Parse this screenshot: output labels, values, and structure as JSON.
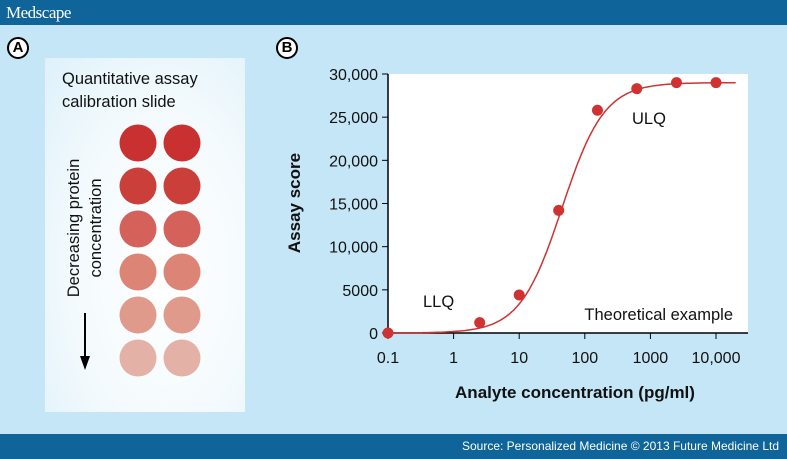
{
  "header": {
    "brand": "Medscape"
  },
  "footer": {
    "source": "Source: Personalized Medicine © 2013 Future Medicine Ltd"
  },
  "panel_a": {
    "badge": "A",
    "title_line1": "Quantitative assay",
    "title_line2": "calibration slide",
    "axis_label_line1": "Decreasing protein",
    "axis_label_line2": "concentration",
    "dot_colors": [
      "#c93030",
      "#cb3f3a",
      "#d4625a",
      "#dc8475",
      "#e09a8c",
      "#e4b1a6"
    ]
  },
  "panel_b": {
    "badge": "B"
  },
  "chart_data": {
    "type": "scatter",
    "xlabel": "Analyte concentration (pg/ml)",
    "ylabel": "Assay score",
    "xscale": "log",
    "xlim": [
      0.1,
      20000
    ],
    "ylim": [
      0,
      30000
    ],
    "xticks": [
      0.1,
      1,
      10,
      100,
      1000,
      10000
    ],
    "xtick_labels": [
      "0.1",
      "1",
      "10",
      "100",
      "1000",
      "10,000"
    ],
    "yticks": [
      0,
      5000,
      10000,
      15000,
      20000,
      25000,
      30000
    ],
    "ytick_labels": [
      "0",
      "5000",
      "10,000",
      "15,000",
      "20,000",
      "25,000",
      "30,000"
    ],
    "points": [
      {
        "x": 0.1,
        "y": 0
      },
      {
        "x": 2.5,
        "y": 1200
      },
      {
        "x": 10,
        "y": 4400
      },
      {
        "x": 40,
        "y": 14200
      },
      {
        "x": 156,
        "y": 25800
      },
      {
        "x": 620,
        "y": 28300
      },
      {
        "x": 2500,
        "y": 29000
      },
      {
        "x": 10000,
        "y": 29000
      }
    ],
    "fit": "sigmoid",
    "annotations": [
      "LLQ",
      "ULQ",
      "Theoretical example"
    ],
    "color": "#d03232",
    "grid": false
  }
}
